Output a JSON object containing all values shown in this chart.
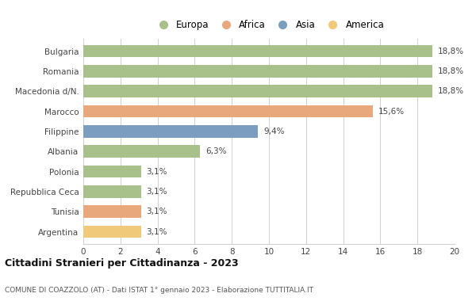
{
  "categories": [
    "Argentina",
    "Tunisia",
    "Repubblica Ceca",
    "Polonia",
    "Albania",
    "Filippine",
    "Marocco",
    "Macedonia d/N.",
    "Romania",
    "Bulgaria"
  ],
  "values": [
    3.1,
    3.1,
    3.1,
    3.1,
    6.3,
    9.4,
    15.6,
    18.8,
    18.8,
    18.8
  ],
  "labels": [
    "3,1%",
    "3,1%",
    "3,1%",
    "3,1%",
    "6,3%",
    "9,4%",
    "15,6%",
    "18,8%",
    "18,8%",
    "18,8%"
  ],
  "colors": [
    "#f0c97a",
    "#e8a87c",
    "#a8c08a",
    "#a8c08a",
    "#a8c08a",
    "#7b9dc0",
    "#e8a87c",
    "#a8c08a",
    "#a8c08a",
    "#a8c08a"
  ],
  "legend_labels": [
    "Europa",
    "Africa",
    "Asia",
    "America"
  ],
  "legend_colors": [
    "#a8c08a",
    "#e8a87c",
    "#7b9dc0",
    "#f0c97a"
  ],
  "title": "Cittadini Stranieri per Cittadinanza - 2023",
  "subtitle": "COMUNE DI COAZZOLO (AT) - Dati ISTAT 1° gennaio 2023 - Elaborazione TUTTITALIA.IT",
  "xlim": [
    0,
    20
  ],
  "xticks": [
    0,
    2,
    4,
    6,
    8,
    10,
    12,
    14,
    16,
    18,
    20
  ],
  "bg_color": "#ffffff",
  "grid_color": "#d0d0d0",
  "bar_height": 0.62
}
